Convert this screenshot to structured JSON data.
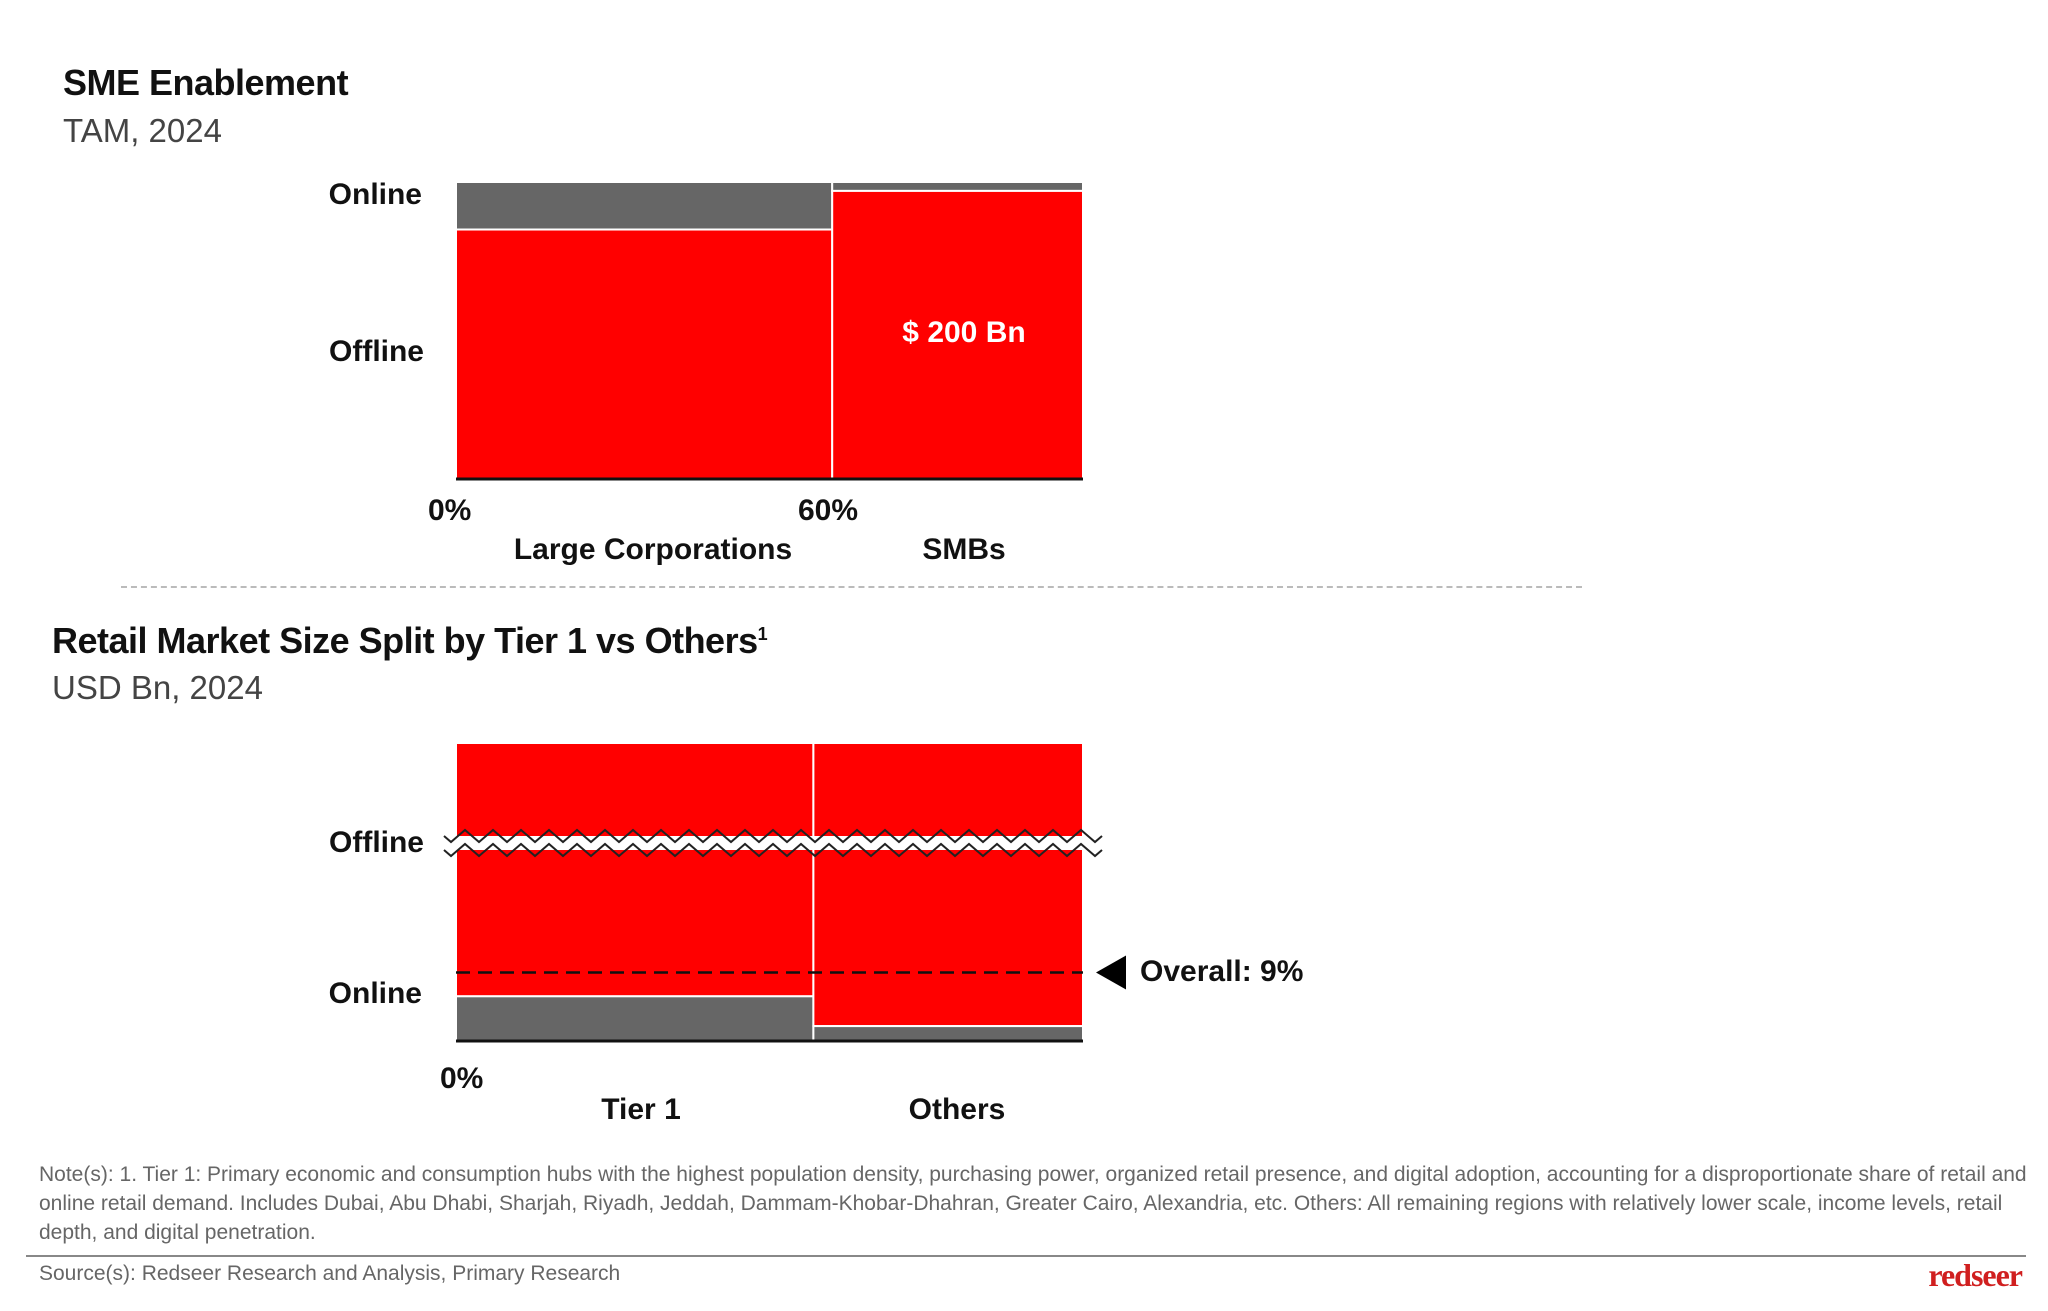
{
  "chart_data": [
    {
      "type": "mekko",
      "title": "SME Enablement",
      "subtitle": "TAM, 2024",
      "categories": [
        "Large Corporations",
        "SMBs"
      ],
      "category_widths_pct": [
        60,
        40
      ],
      "x_ticks": [
        "0%",
        "60%"
      ],
      "segments": [
        "Online",
        "Offline"
      ],
      "series": [
        {
          "name": "Online",
          "values_pct": [
            16,
            3
          ],
          "color": "#666666"
        },
        {
          "name": "Offline",
          "values_pct": [
            84,
            97
          ],
          "color": "#FF0000"
        }
      ],
      "annotations": [
        {
          "category": "SMBs",
          "segment": "Offline",
          "text": "$ 200 Bn"
        }
      ]
    },
    {
      "type": "mekko",
      "title": "Retail Market Size Split by Tier 1 vs Others",
      "title_superscript": "1",
      "subtitle": "USD Bn, 2024",
      "categories": [
        "Tier 1",
        "Others"
      ],
      "category_widths_pct": [
        57,
        43
      ],
      "x_ticks": [
        "0%"
      ],
      "segments": [
        "Offline",
        "Online"
      ],
      "axis_break": true,
      "series": [
        {
          "name": "Online",
          "values_pct": [
            15,
            5
          ],
          "color": "#666666"
        },
        {
          "name": "Offline",
          "values_pct": [
            85,
            95
          ],
          "color": "#FF0000"
        }
      ],
      "reference_line": {
        "label": "Overall: 9%",
        "value_pct": 9
      }
    }
  ],
  "footer": {
    "note": "Note(s): 1. Tier 1: Primary economic and consumption hubs with the highest population density, purchasing power, organized retail presence, and digital adoption, accounting for a disproportionate share of retail and online retail demand. Includes Dubai, Abu Dhabi, Sharjah, Riyadh, Jeddah, Dammam-Khobar-Dhahran, Greater Cairo, Alexandria, etc. Others: All remaining regions with relatively lower scale, income levels, retail depth, and digital penetration.",
    "source": "Source(s): Redseer Research and Analysis, Primary Research",
    "logo": "redseer"
  },
  "colors": {
    "accent": "#FF0000",
    "online": "#666666"
  }
}
